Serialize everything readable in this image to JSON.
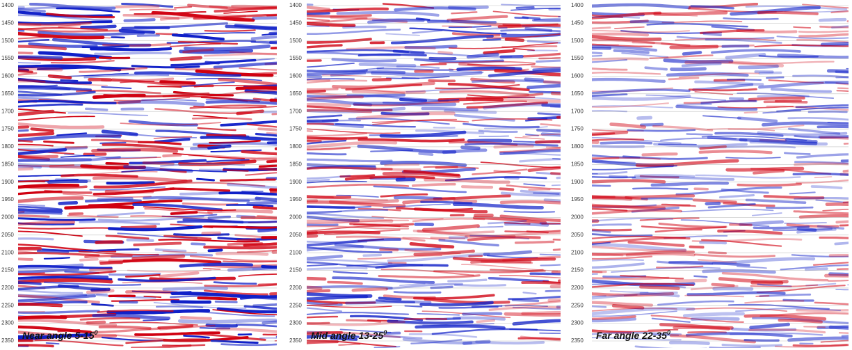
{
  "panels": [
    {
      "label": "Near angle 5-15",
      "label_sup": "0"
    },
    {
      "label": "Mid angle 13-25",
      "label_sup": "0"
    },
    {
      "label": "Far angle 22-35",
      "label_sup": "0"
    }
  ],
  "ticks": [
    "1400",
    "1450",
    "1500",
    "1550",
    "1600",
    "1650",
    "1700",
    "1750",
    "1800",
    "1850",
    "1900",
    "1950",
    "2000",
    "2050",
    "2100",
    "2150",
    "2200",
    "2250",
    "2300",
    "2350"
  ]
}
